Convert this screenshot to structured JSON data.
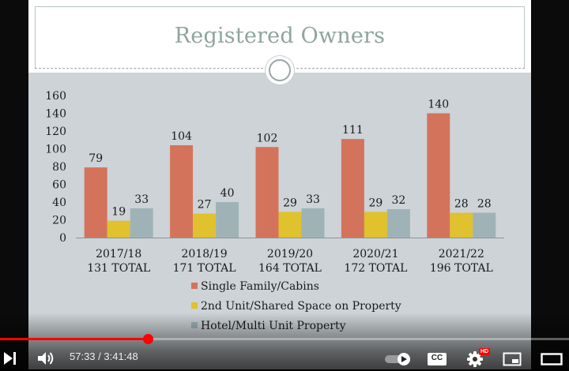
{
  "slide": {
    "title": "Registered Owners"
  },
  "chart_data": {
    "type": "bar",
    "categories": [
      "2017/18\n131 TOTAL",
      "2018/19\n171 TOTAL",
      "2019/20\n164 TOTAL",
      "2020/21\n172 TOTAL",
      "2021/22\n196 TOTAL"
    ],
    "category_lines": [
      [
        "2017/18",
        "131 TOTAL"
      ],
      [
        "2018/19",
        "171 TOTAL"
      ],
      [
        "2019/20",
        "164 TOTAL"
      ],
      [
        "2020/21",
        "172 TOTAL"
      ],
      [
        "2021/22",
        "196 TOTAL"
      ]
    ],
    "series": [
      {
        "name": "Single Family/Cabins",
        "color": "#d4735c",
        "values": [
          79,
          104,
          102,
          111,
          140
        ]
      },
      {
        "name": "2nd Unit/Shared Space on Property",
        "color": "#e0c12e",
        "values": [
          19,
          27,
          29,
          29,
          28
        ]
      },
      {
        "name": "Hotel/Multi Unit Property",
        "color": "#9fb3b7",
        "values": [
          33,
          40,
          33,
          32,
          28
        ]
      }
    ],
    "ylim": [
      0,
      160
    ],
    "yticks": [
      "0",
      "20",
      "40",
      "60",
      "80",
      "100",
      "120",
      "140",
      "160"
    ],
    "grid": false,
    "legend_position": "bottom",
    "data_labels": true
  },
  "player": {
    "time_display": "57:33 / 3:41:48",
    "progress_fraction": 0.2596,
    "icons": {
      "play": "next-icon",
      "volume": "volume-icon",
      "autoplay": "autoplay-toggle-icon",
      "captions": "captions-icon",
      "settings": "settings-gear-icon",
      "miniplayer": "miniplayer-icon",
      "theater": "theater-mode-icon"
    },
    "captions_label": "CC",
    "hd_badge": "HD",
    "accent_color": "#ff0000"
  }
}
